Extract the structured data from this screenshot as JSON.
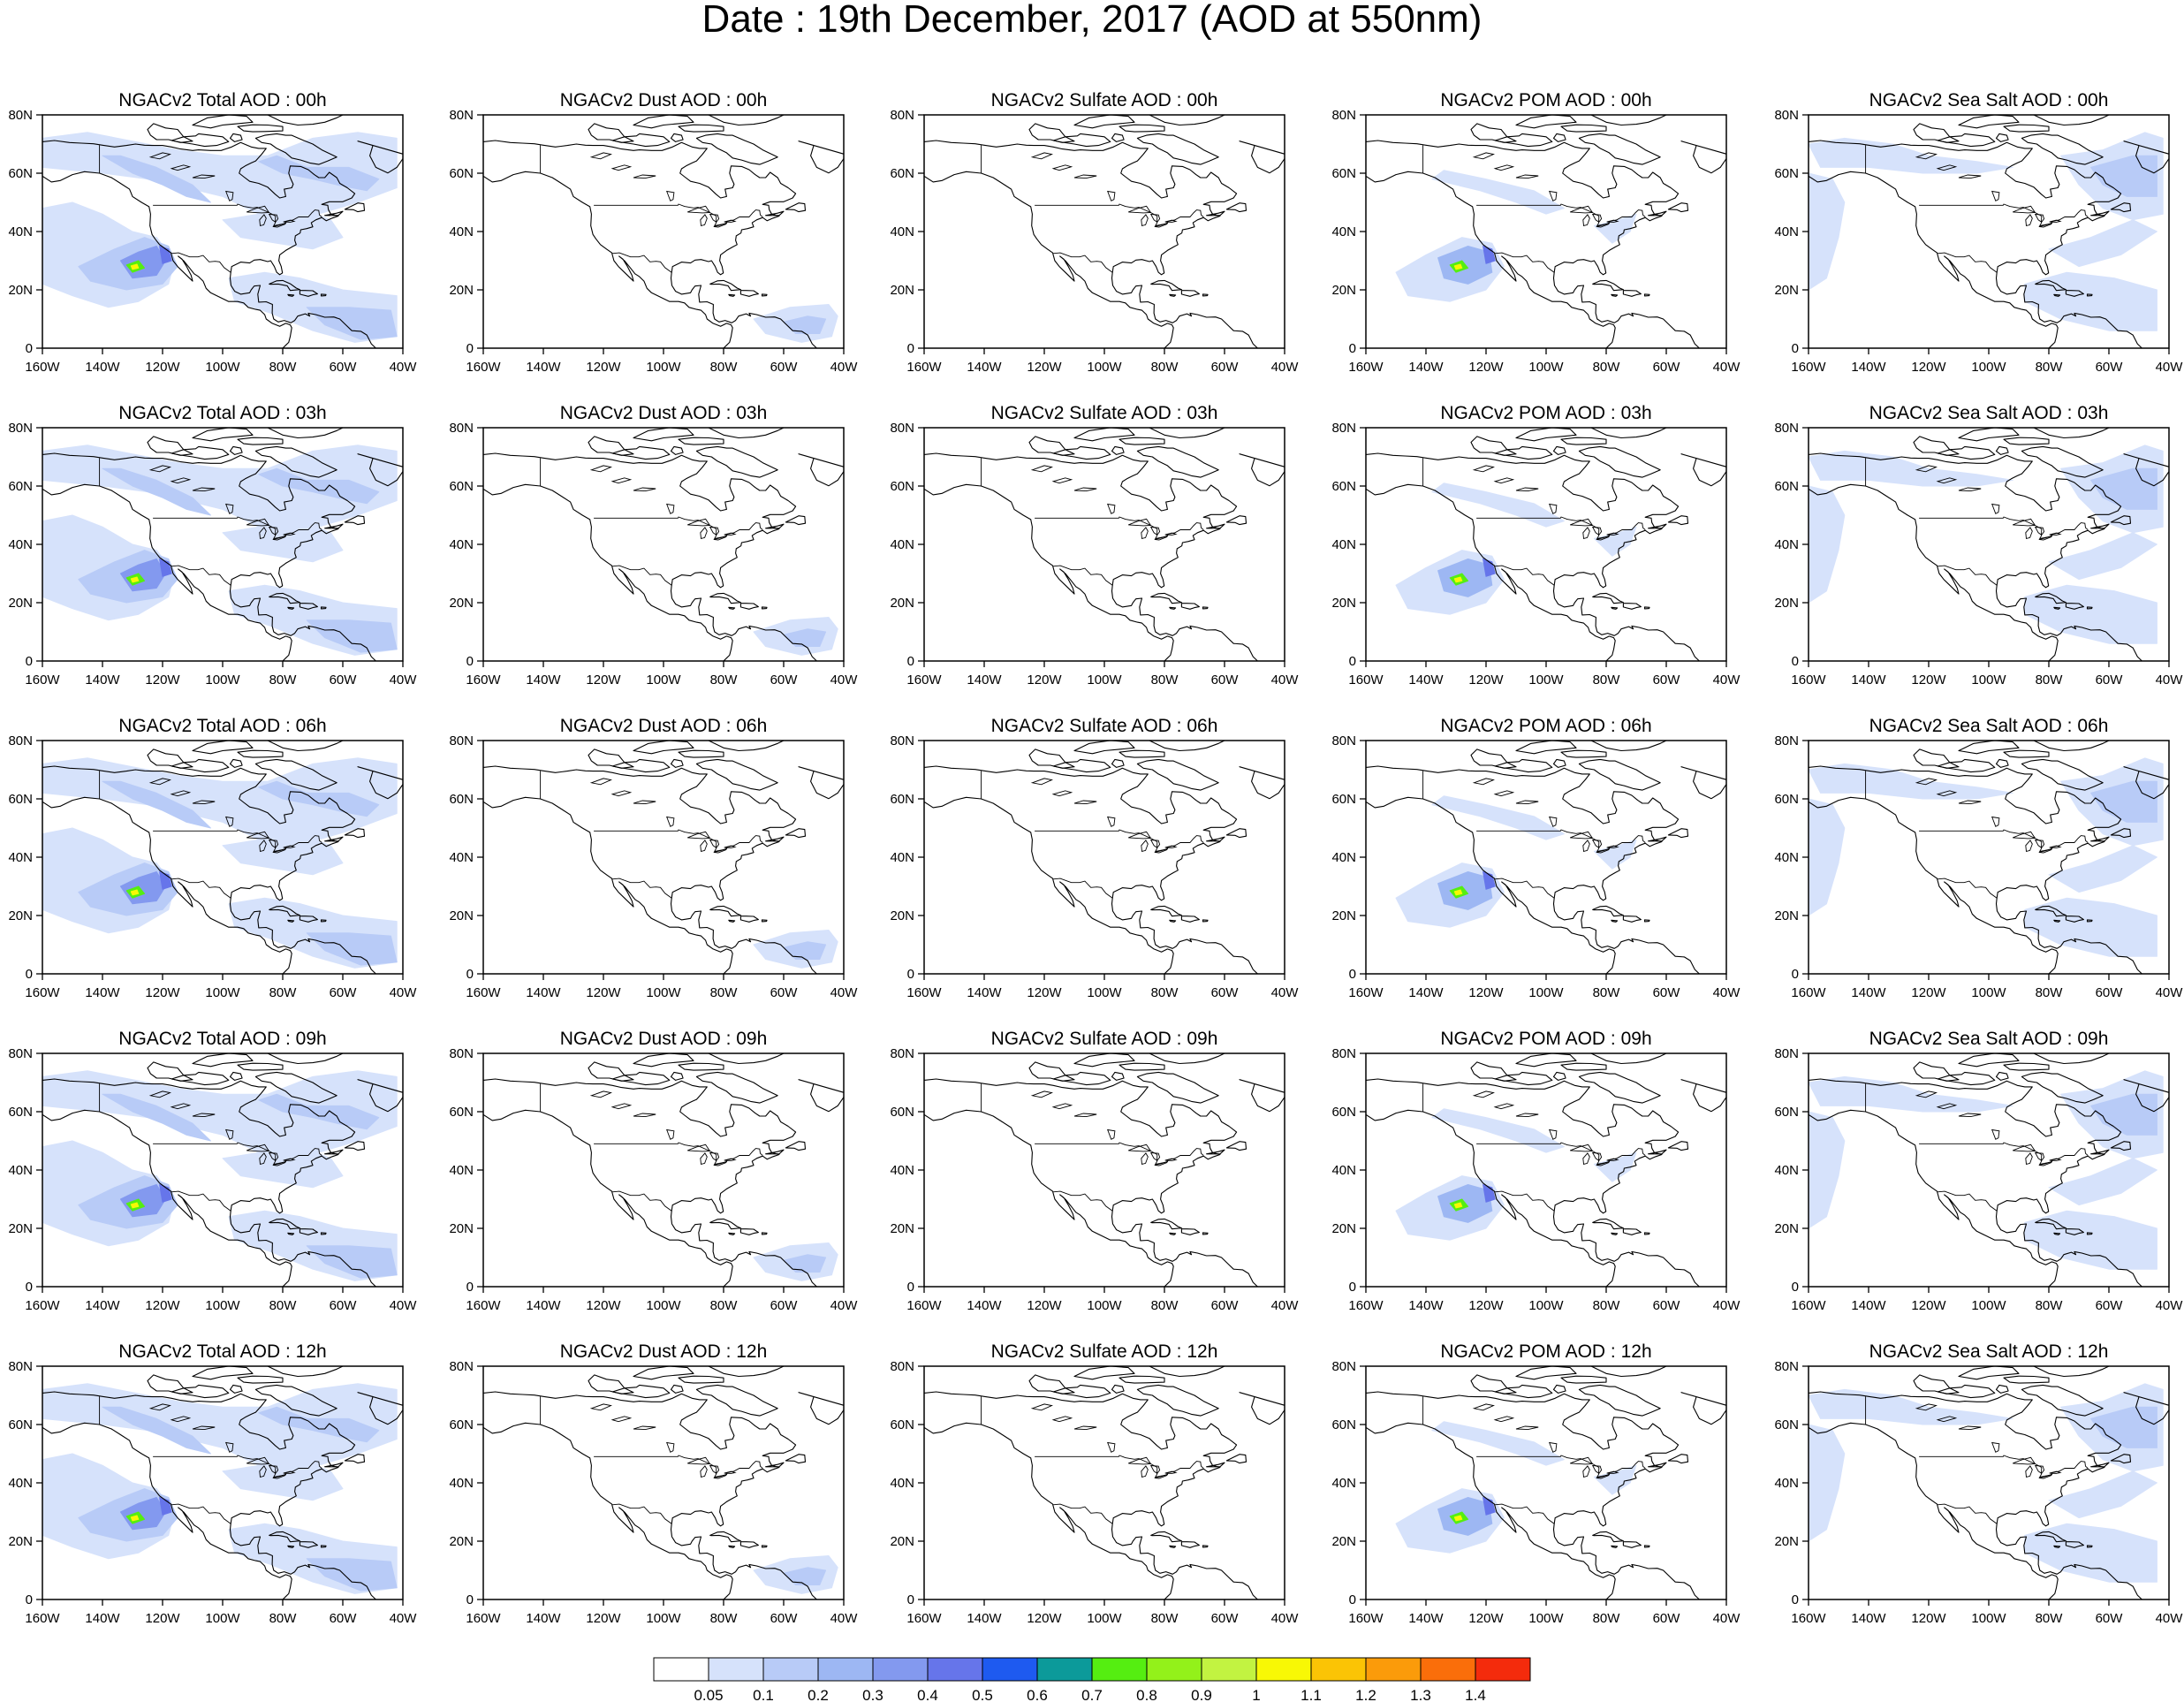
{
  "title": "Date : 19th December, 2017 (AOD at 550nm)",
  "lat_ticks": [
    "80N",
    "60N",
    "40N",
    "20N",
    "0"
  ],
  "lon_ticks": [
    "160W",
    "140W",
    "120W",
    "100W",
    "80W",
    "60W",
    "40W"
  ],
  "colorbar": {
    "colors": [
      "#ffffff",
      "#d6e2fb",
      "#b8cbf7",
      "#9db7f3",
      "#8399ef",
      "#6675ea",
      "#1e5af0",
      "#0c9a9a",
      "#55ee11",
      "#93f11a",
      "#c2f341",
      "#f8f805",
      "#fbc405",
      "#fb9b0a",
      "#fa6e0a",
      "#f42b0c"
    ],
    "labels": [
      "0.05",
      "0.1",
      "0.2",
      "0.3",
      "0.4",
      "0.5",
      "0.6",
      "0.7",
      "0.8",
      "0.9",
      "1",
      "1.1",
      "1.2",
      "1.3",
      "1.4"
    ]
  },
  "panels": [
    {
      "title": "NGACv2 Total AOD : 00h",
      "species": "total"
    },
    {
      "title": "NGACv2 Dust AOD : 00h",
      "species": "dust"
    },
    {
      "title": "NGACv2 Sulfate AOD : 00h",
      "species": "sulfate"
    },
    {
      "title": "NGACv2 POM AOD : 00h",
      "species": "pom"
    },
    {
      "title": "NGACv2 Sea Salt AOD : 00h",
      "species": "seasalt"
    },
    {
      "title": "NGACv2 Total AOD : 03h",
      "species": "total"
    },
    {
      "title": "NGACv2 Dust AOD : 03h",
      "species": "dust"
    },
    {
      "title": "NGACv2 Sulfate AOD : 03h",
      "species": "sulfate"
    },
    {
      "title": "NGACv2 POM AOD : 03h",
      "species": "pom"
    },
    {
      "title": "NGACv2 Sea Salt AOD : 03h",
      "species": "seasalt"
    },
    {
      "title": "NGACv2 Total AOD : 06h",
      "species": "total"
    },
    {
      "title": "NGACv2 Dust AOD : 06h",
      "species": "dust"
    },
    {
      "title": "NGACv2 Sulfate AOD : 06h",
      "species": "sulfate"
    },
    {
      "title": "NGACv2 POM AOD : 06h",
      "species": "pom"
    },
    {
      "title": "NGACv2 Sea Salt AOD : 06h",
      "species": "seasalt"
    },
    {
      "title": "NGACv2 Total AOD : 09h",
      "species": "total"
    },
    {
      "title": "NGACv2 Dust AOD : 09h",
      "species": "dust"
    },
    {
      "title": "NGACv2 Sulfate AOD : 09h",
      "species": "sulfate"
    },
    {
      "title": "NGACv2 POM AOD : 09h",
      "species": "pom"
    },
    {
      "title": "NGACv2 Sea Salt  AOD : 09h",
      "species": "seasalt"
    },
    {
      "title": "NGACv2 Total AOD  : 12h",
      "species": "total"
    },
    {
      "title": "NGACv2 Dust AOD : 12h",
      "species": "dust"
    },
    {
      "title": "NGACv2 Sulfate AOD : 12h",
      "species": "sulfate"
    },
    {
      "title": "NGACv2 POM  AOD : 12h",
      "species": "pom"
    },
    {
      "title": "NGACv2 Sea Salt  AOD : 12h",
      "species": "seasalt"
    }
  ]
}
